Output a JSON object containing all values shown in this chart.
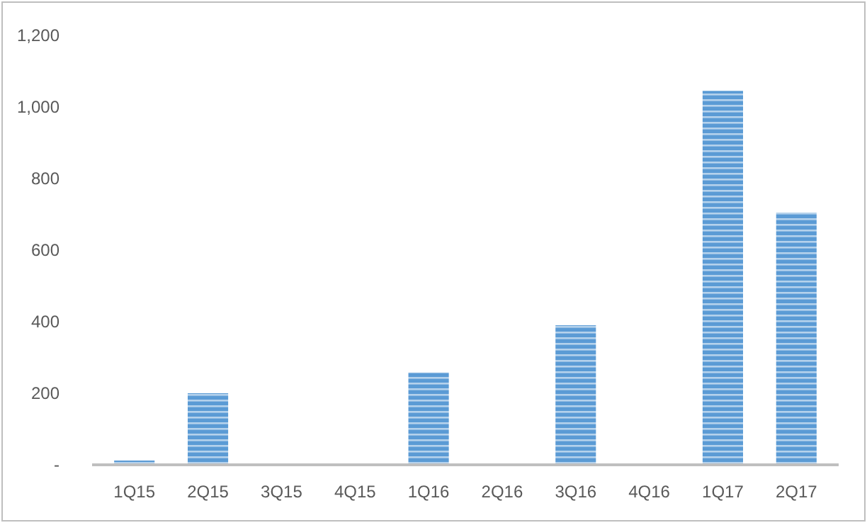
{
  "chart_data": {
    "type": "bar",
    "categories": [
      "1Q15",
      "2Q15",
      "3Q15",
      "4Q15",
      "1Q16",
      "2Q16",
      "3Q16",
      "4Q16",
      "1Q17",
      "2Q17"
    ],
    "values": [
      12,
      200,
      null,
      null,
      258,
      null,
      390,
      null,
      1045,
      705
    ],
    "color": "#5b9bd5",
    "ylim": [
      0,
      1200
    ],
    "yticks": [
      {
        "value": 0,
        "label": "-"
      },
      200,
      400,
      600,
      800,
      {
        "value": 1000,
        "label": "1,000"
      },
      {
        "value": 1200,
        "label": "1,200"
      }
    ],
    "grid": false
  }
}
